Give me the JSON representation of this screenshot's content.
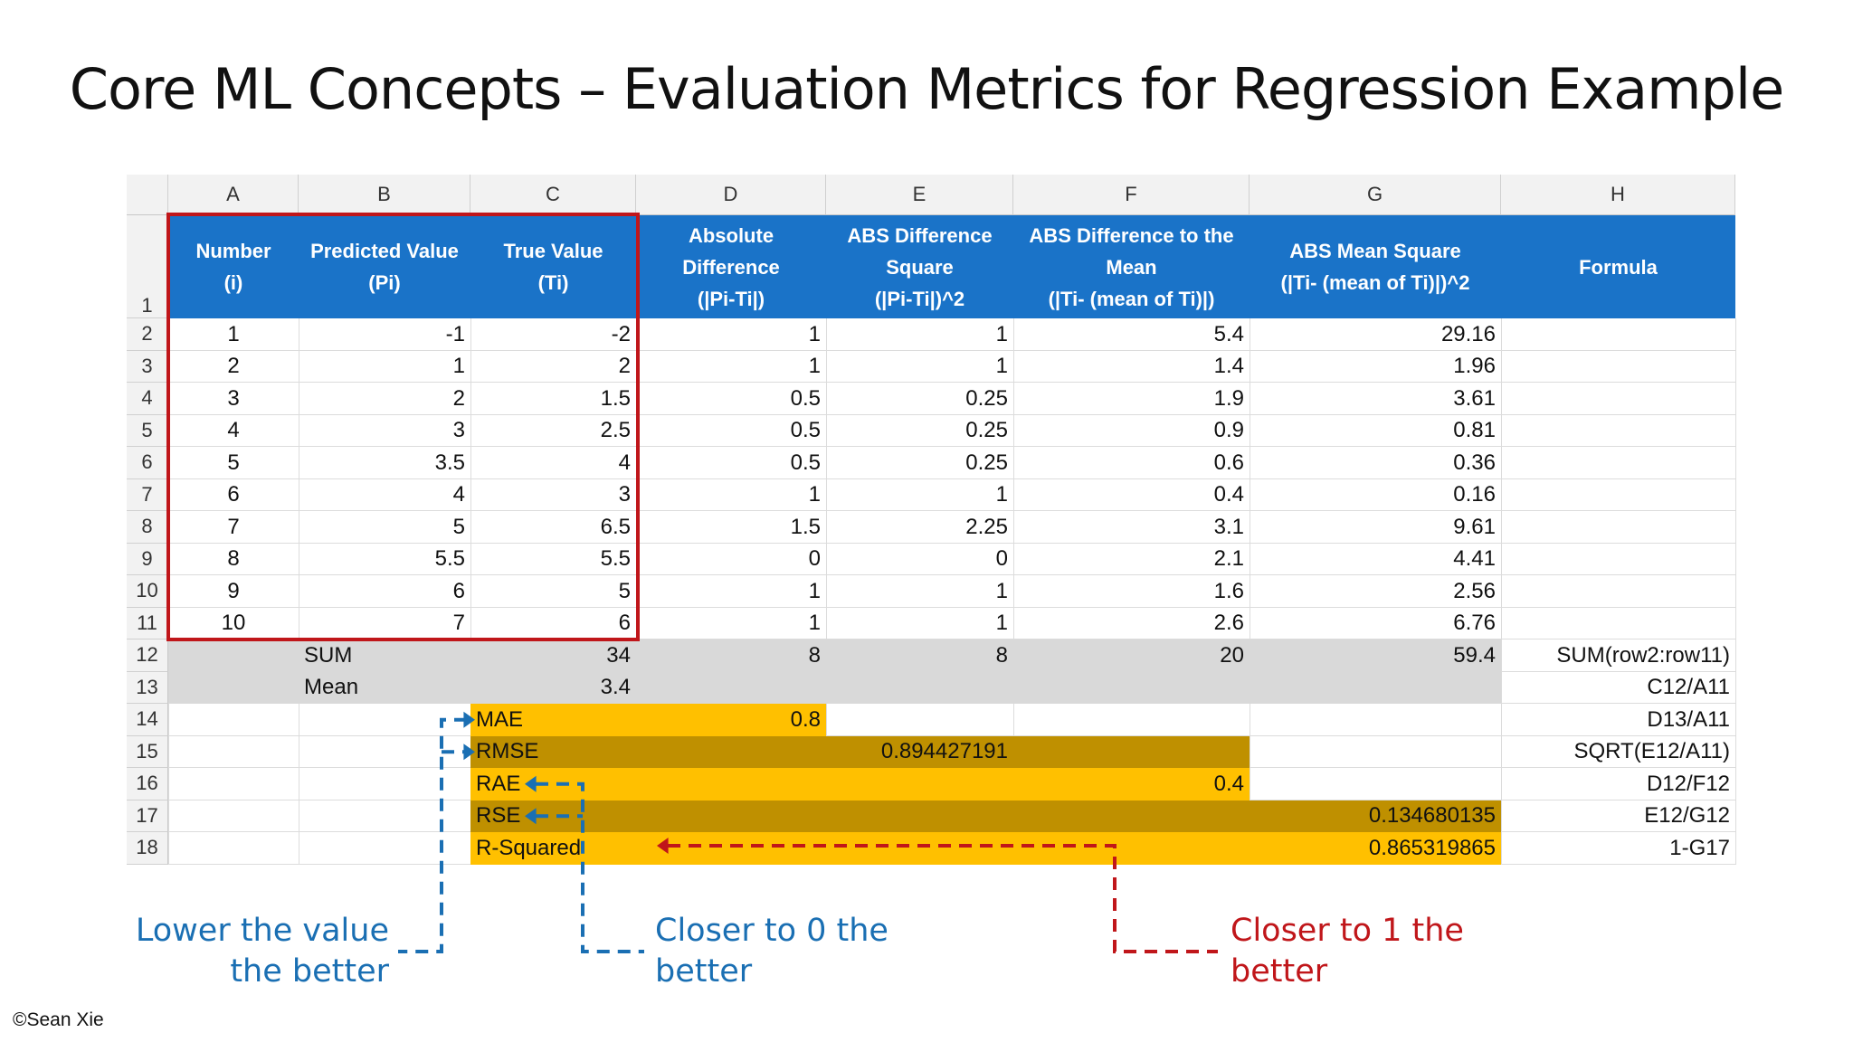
{
  "title": "Core ML Concepts – Evaluation Metrics for Regression Example",
  "columns": [
    "A",
    "B",
    "C",
    "D",
    "E",
    "F",
    "G",
    "H"
  ],
  "header_row": [
    "Number\n(i)",
    "Predicted Value\n(Pi)",
    "True Value\n(Ti)",
    "Absolute\nDifference\n(|Pi-Ti|)",
    "ABS Difference\nSquare\n(|Pi-Ti|)^2",
    "ABS Difference to the\nMean\n(|Ti- (mean of Ti)|)",
    "ABS Mean Square\n(|Ti- (mean of Ti)|)^2",
    "Formula"
  ],
  "data_rows": [
    [
      "1",
      "-1",
      "-2",
      "1",
      "1",
      "5.4",
      "29.16"
    ],
    [
      "2",
      "1",
      "2",
      "1",
      "1",
      "1.4",
      "1.96"
    ],
    [
      "3",
      "2",
      "1.5",
      "0.5",
      "0.25",
      "1.9",
      "3.61"
    ],
    [
      "4",
      "3",
      "2.5",
      "0.5",
      "0.25",
      "0.9",
      "0.81"
    ],
    [
      "5",
      "3.5",
      "4",
      "0.5",
      "0.25",
      "0.6",
      "0.36"
    ],
    [
      "6",
      "4",
      "3",
      "1",
      "1",
      "0.4",
      "0.16"
    ],
    [
      "7",
      "5",
      "6.5",
      "1.5",
      "2.25",
      "3.1",
      "9.61"
    ],
    [
      "8",
      "5.5",
      "5.5",
      "0",
      "0",
      "2.1",
      "4.41"
    ],
    [
      "9",
      "6",
      "5",
      "1",
      "1",
      "1.6",
      "2.56"
    ],
    [
      "10",
      "7",
      "6",
      "1",
      "1",
      "2.6",
      "6.76"
    ]
  ],
  "sum_row": {
    "label": "SUM",
    "c": "34",
    "d": "8",
    "e": "8",
    "f": "20",
    "g": "59.4",
    "formula": "SUM(row2:row11)"
  },
  "mean_row": {
    "label": "Mean",
    "c": "3.4",
    "formula": "C12/A11"
  },
  "metrics": [
    {
      "name": "MAE",
      "value": "0.8",
      "formula": "D13/A11"
    },
    {
      "name": "RMSE",
      "value": "0.894427191",
      "formula": "SQRT(E12/A11)"
    },
    {
      "name": "RAE",
      "value": "0.4",
      "formula": "D12/F12"
    },
    {
      "name": "RSE",
      "value": "0.134680135",
      "formula": "E12/G12"
    },
    {
      "name": "R-Squared",
      "value": "0.865319865",
      "formula": "1-G17"
    }
  ],
  "annotations": {
    "lower": [
      "Lower the value",
      "the better"
    ],
    "closer0": [
      "Closer to 0 the",
      "better"
    ],
    "closer1": [
      "Closer to 1 the",
      "better"
    ]
  },
  "colors": {
    "header_blue": "#1a73c8",
    "summary_gray": "#d9d9d9",
    "metric_gold": "#ffc000",
    "metric_dark_gold": "#bf9000",
    "arrow_blue": "#1a6fb3",
    "arrow_red": "#c0161a",
    "highlight_box": "#c0161a"
  },
  "copyright": "©Sean Xie"
}
